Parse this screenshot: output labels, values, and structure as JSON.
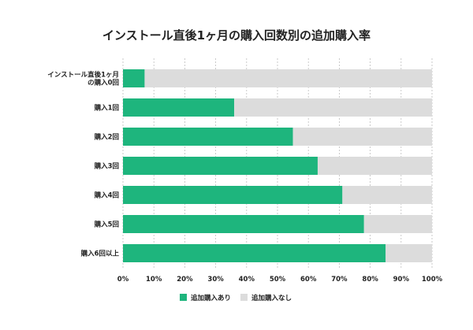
{
  "chart_data": {
    "type": "bar",
    "orientation": "horizontal",
    "stacked": true,
    "title": "インストール直後1ヶ月の購入回数別の追加購入率",
    "categories": [
      [
        "インストール直後1ヶ月",
        "の購入0回"
      ],
      [
        "購入1回"
      ],
      [
        "購入2回"
      ],
      [
        "購入3回"
      ],
      [
        "購入4回"
      ],
      [
        "購入5回"
      ],
      [
        "購入6回以上"
      ]
    ],
    "series": [
      {
        "name": "追加購入あり",
        "color": "#1eb57d",
        "values": [
          7,
          36,
          55,
          63,
          71,
          78,
          85
        ]
      },
      {
        "name": "追加購入なし",
        "color": "#dcdcdc",
        "values": [
          93,
          64,
          45,
          37,
          29,
          22,
          15
        ]
      }
    ],
    "xlim": [
      0,
      100
    ],
    "xticks": [
      "0%",
      "10%",
      "20%",
      "30%",
      "40%",
      "50%",
      "60%",
      "70%",
      "80%",
      "90%",
      "100%"
    ],
    "grid": true,
    "legend": "bottom"
  }
}
